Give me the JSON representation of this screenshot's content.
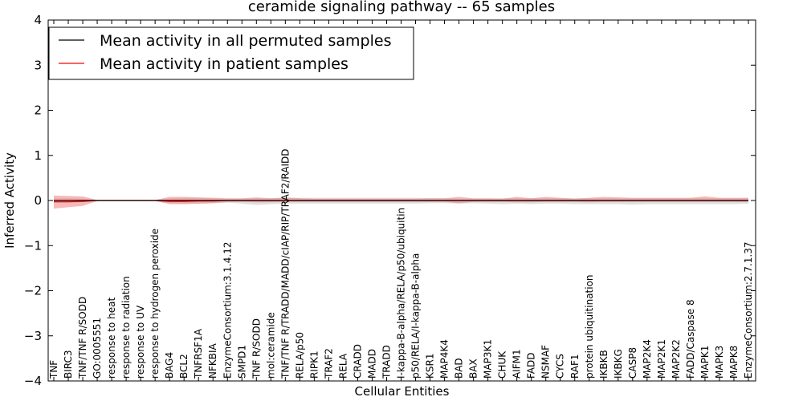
{
  "chart_data": {
    "type": "line",
    "title": "ceramide signaling pathway -- 65 samples",
    "xlabel": "Cellular Entities",
    "ylabel": "Inferred Activity",
    "ylim": [
      -4,
      4
    ],
    "yticks": [
      4,
      3,
      2,
      1,
      0,
      -1,
      -2,
      -3,
      -4
    ],
    "ytick_labels": [
      "4",
      "3",
      "2",
      "1",
      "0",
      "−1",
      "−2",
      "−3",
      "−4"
    ],
    "legend_position": "upper-left",
    "categories": [
      "TNF",
      "BIRC3",
      "TNF/TNF R/SODD",
      "GO:0005551",
      "response to heat",
      "response to radiation",
      "response to UV",
      "response to hydrogen peroxide",
      "BAG4",
      "BCL2",
      "TNFRSF1A",
      "NFKBIA",
      "EnzymeConsortium:3.1.4.12",
      "SMPD1",
      "TNF R/SODD",
      "mol:ceramide",
      "TNF/TNF R/TRADD/MADD/cIAP/RIP/TRAF2/RAIDD",
      "RELA/p50",
      "RIPK1",
      "TRAF2",
      "RELA",
      "CRADD",
      "MADD",
      "TRADD",
      "I-kappa-B-alpha/RELA/p50/ubiquitin",
      "p50/RELA/I-kappa-B-alpha",
      "KSR1",
      "MAP4K4",
      "BAD",
      "BAX",
      "MAP3K1",
      "CHUK",
      "AIFM1",
      "FADD",
      "NSMAF",
      "CYCS",
      "RAF1",
      "protein ubiquitination",
      "IKBKB",
      "IKBKG",
      "CASP8",
      "MAP2K4",
      "MAP2K1",
      "MAP2K2",
      "FADD/Caspase 8",
      "MAPK1",
      "MAPK3",
      "MAPK8",
      "EnzymeConsortium:2.7.1.37"
    ],
    "series": [
      {
        "name": "Mean activity in all permuted samples",
        "color": "#000000",
        "band_color": "#cccccc",
        "values": [
          0,
          0,
          0,
          0,
          0,
          0,
          0,
          0,
          0,
          0,
          0,
          0,
          0,
          0,
          0,
          0,
          0,
          0,
          0,
          0,
          0,
          0,
          0,
          0,
          0,
          0,
          0,
          0,
          0,
          0,
          0,
          0,
          0,
          0,
          0,
          0,
          0,
          0,
          0,
          0,
          0,
          0,
          0,
          0,
          0,
          0,
          0,
          0,
          0
        ],
        "band_upper": [
          0.05,
          0.05,
          0.04,
          0.01,
          0.01,
          0.01,
          0.01,
          0.01,
          0.05,
          0.06,
          0.06,
          0.05,
          0.04,
          0.04,
          0.05,
          0.05,
          0.06,
          0.06,
          0.06,
          0.06,
          0.06,
          0.06,
          0.06,
          0.06,
          0.06,
          0.06,
          0.05,
          0.05,
          0.04,
          0.04,
          0.04,
          0.05,
          0.05,
          0.05,
          0.05,
          0.05,
          0.05,
          0.05,
          0.05,
          0.05,
          0.05,
          0.05,
          0.05,
          0.05,
          0.05,
          0.05,
          0.05,
          0.05,
          0.05
        ],
        "band_lower": [
          -0.05,
          -0.05,
          -0.04,
          -0.01,
          -0.01,
          -0.01,
          -0.01,
          -0.01,
          -0.06,
          -0.07,
          -0.07,
          -0.06,
          -0.05,
          -0.07,
          -0.1,
          -0.08,
          -0.07,
          -0.07,
          -0.07,
          -0.07,
          -0.07,
          -0.07,
          -0.07,
          -0.07,
          -0.07,
          -0.07,
          -0.06,
          -0.06,
          -0.07,
          -0.06,
          -0.07,
          -0.08,
          -0.07,
          -0.08,
          -0.07,
          -0.07,
          -0.08,
          -0.08,
          -0.08,
          -0.08,
          -0.09,
          -0.08,
          -0.08,
          -0.08,
          -0.08,
          -0.08,
          -0.08,
          -0.08,
          -0.07
        ]
      },
      {
        "name": "Mean activity in patient samples",
        "color": "#ff0000",
        "band_color": "#f08080",
        "values": [
          -0.03,
          -0.03,
          -0.02,
          0,
          0,
          0,
          0,
          0,
          -0.02,
          -0.02,
          -0.01,
          -0.01,
          0,
          0,
          0,
          0,
          0,
          0,
          0,
          0,
          0,
          0,
          0,
          0,
          0,
          0,
          0,
          0,
          0,
          0,
          0,
          0,
          0,
          0,
          0,
          0,
          0,
          0,
          0,
          0,
          0,
          0,
          0,
          0,
          0,
          0,
          0,
          0,
          0
        ],
        "band_upper": [
          0.11,
          0.1,
          0.09,
          0.01,
          0.01,
          0.01,
          0.01,
          0.01,
          0.08,
          0.08,
          0.07,
          0.06,
          0.05,
          0.05,
          0.07,
          0.05,
          0.07,
          0.05,
          0.04,
          0.04,
          0.04,
          0.04,
          0.04,
          0.04,
          0.04,
          0.04,
          0.05,
          0.05,
          0.08,
          0.05,
          0.05,
          0.04,
          0.08,
          0.05,
          0.08,
          0.06,
          0.04,
          0.06,
          0.08,
          0.07,
          0.06,
          0.06,
          0.06,
          0.06,
          0.06,
          0.09,
          0.06,
          0.06,
          0.06
        ],
        "band_lower": [
          -0.18,
          -0.15,
          -0.12,
          -0.01,
          -0.01,
          -0.01,
          -0.01,
          -0.01,
          -0.08,
          -0.08,
          -0.07,
          -0.06,
          -0.03,
          -0.03,
          -0.04,
          -0.04,
          -0.03,
          -0.03,
          -0.03,
          -0.03,
          -0.03,
          -0.03,
          -0.03,
          -0.03,
          -0.03,
          -0.03,
          -0.03,
          -0.03,
          -0.06,
          -0.03,
          -0.03,
          -0.03,
          -0.04,
          -0.04,
          -0.03,
          -0.03,
          -0.03,
          -0.04,
          -0.03,
          -0.03,
          -0.03,
          -0.03,
          -0.03,
          -0.03,
          -0.03,
          -0.03,
          -0.03,
          -0.03,
          -0.03
        ]
      }
    ]
  }
}
